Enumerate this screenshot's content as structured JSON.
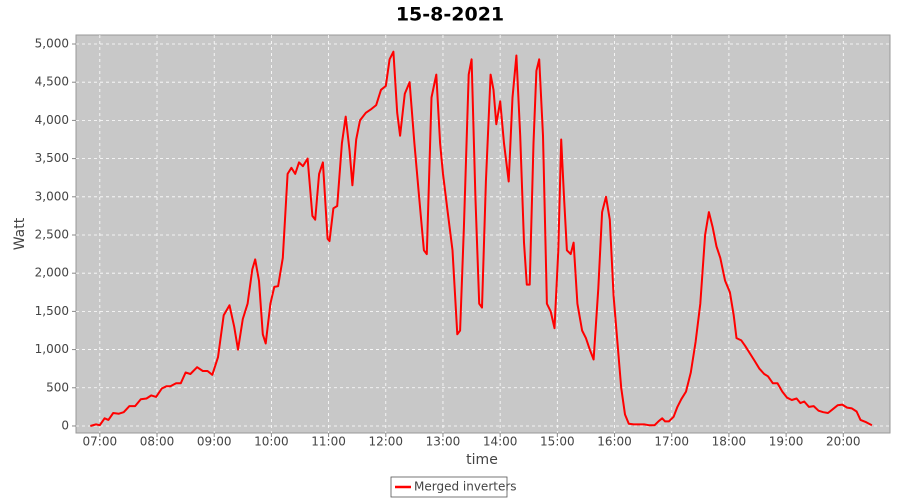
{
  "chart_data": {
    "type": "line",
    "title": "15-8-2021",
    "x_label": "time",
    "y_label": "Watt",
    "xlim": [
      "06:35",
      "20:49"
    ],
    "xticks": [
      "07:00",
      "08:00",
      "09:00",
      "10:00",
      "11:00",
      "12:00",
      "13:00",
      "14:00",
      "15:00",
      "16:00",
      "17:00",
      "18:00",
      "19:00",
      "20:00"
    ],
    "ylim": [
      -92,
      5118
    ],
    "yticks": [
      0,
      500,
      {
        "value": 1000,
        "label": "1,000"
      },
      {
        "value": 1500,
        "label": "1,500"
      },
      {
        "value": 2000,
        "label": "2,000"
      },
      {
        "value": 2500,
        "label": "2,500"
      },
      {
        "value": 3000,
        "label": "3,000"
      },
      {
        "value": 3500,
        "label": "3,500"
      },
      {
        "value": 4000,
        "label": "4,000"
      },
      {
        "value": 4500,
        "label": "4,500"
      },
      {
        "value": 5000,
        "label": "5,000"
      }
    ],
    "grid": true,
    "legend": "bottom",
    "x": [
      "06:50",
      "06:56",
      "07:00",
      "07:05",
      "07:09",
      "07:14",
      "07:20",
      "07:25",
      "07:31",
      "07:37",
      "07:43",
      "07:49",
      "07:54",
      "07:59",
      "08:05",
      "08:10",
      "08:14",
      "08:20",
      "08:25",
      "08:30",
      "08:35",
      "08:42",
      "08:48",
      "08:53",
      "08:58",
      "09:04",
      "09:10",
      "09:16",
      "09:21",
      "09:25",
      "09:30",
      "09:35",
      "09:40",
      "09:43",
      "09:47",
      "09:51",
      "09:54",
      "09:59",
      "10:03",
      "10:07",
      "10:12",
      "10:17",
      "10:21",
      "10:25",
      "10:29",
      "10:33",
      "10:38",
      "10:43",
      "10:46",
      "10:50",
      "10:54",
      "10:59",
      "11:01",
      "11:05",
      "11:09",
      "11:14",
      "11:18",
      "11:22",
      "11:25",
      "11:29",
      "11:33",
      "11:39",
      "11:45",
      "11:50",
      "11:55",
      "12:00",
      "12:04",
      "12:08",
      "12:12",
      "12:15",
      "12:20",
      "12:25",
      "12:30",
      "12:35",
      "12:40",
      "12:43",
      "12:48",
      "12:53",
      "12:57",
      "13:00",
      "13:05",
      "13:10",
      "13:15",
      "13:18",
      "13:22",
      "13:27",
      "13:30",
      "13:34",
      "13:38",
      "13:41",
      "13:45",
      "13:50",
      "13:53",
      "13:56",
      "14:00",
      "14:04",
      "14:09",
      "14:13",
      "14:17",
      "14:21",
      "14:25",
      "14:28",
      "14:31",
      "14:35",
      "14:38",
      "14:41",
      "14:45",
      "14:49",
      "14:53",
      "14:57",
      "15:01",
      "15:04",
      "15:07",
      "15:10",
      "15:14",
      "15:17",
      "15:21",
      "15:26",
      "15:30",
      "15:34",
      "15:38",
      "15:43",
      "15:47",
      "15:51",
      "15:55",
      "15:59",
      "16:03",
      "16:07",
      "16:11",
      "16:15",
      "16:20",
      "16:26",
      "16:31",
      "16:36",
      "16:42",
      "16:46",
      "16:50",
      "16:53",
      "16:57",
      "17:02",
      "17:06",
      "17:10",
      "17:15",
      "17:20",
      "17:25",
      "17:30",
      "17:35",
      "17:39",
      "17:43",
      "17:47",
      "17:51",
      "17:56",
      "18:01",
      "18:05",
      "18:08",
      "18:13",
      "18:17",
      "18:22",
      "18:27",
      "18:32",
      "18:37",
      "18:41",
      "18:46",
      "18:51",
      "18:56",
      "19:01",
      "19:06",
      "19:11",
      "19:15",
      "19:19",
      "19:24",
      "19:29",
      "19:34",
      "19:39",
      "19:44",
      "19:49",
      "19:54",
      "19:59",
      "20:04",
      "20:09",
      "20:14",
      "20:18",
      "20:24",
      "20:30"
    ],
    "series": [
      {
        "name": "Merged inverters",
        "color": "#ff0000",
        "values": [
          0,
          20,
          10,
          100,
          80,
          170,
          160,
          180,
          260,
          260,
          350,
          360,
          400,
          380,
          490,
          520,
          520,
          560,
          560,
          700,
          680,
          770,
          720,
          720,
          670,
          900,
          1450,
          1580,
          1300,
          1000,
          1400,
          1600,
          2050,
          2180,
          1900,
          1200,
          1080,
          1600,
          1820,
          1830,
          2200,
          3300,
          3380,
          3300,
          3450,
          3400,
          3500,
          2750,
          2700,
          3300,
          3450,
          2450,
          2420,
          2850,
          2880,
          3700,
          4050,
          3600,
          3150,
          3750,
          4000,
          4100,
          4150,
          4200,
          4400,
          4450,
          4800,
          4900,
          4100,
          3800,
          4350,
          4500,
          3700,
          3000,
          2300,
          2250,
          4300,
          4600,
          3700,
          3300,
          2800,
          2300,
          1200,
          1250,
          2600,
          4600,
          4800,
          3000,
          1600,
          1550,
          3200,
          4600,
          4400,
          3950,
          4250,
          3700,
          3200,
          4300,
          4850,
          3800,
          2400,
          1850,
          1850,
          3700,
          4650,
          4800,
          3800,
          1600,
          1500,
          1280,
          2300,
          3750,
          3000,
          2300,
          2250,
          2400,
          1600,
          1250,
          1150,
          1000,
          870,
          1800,
          2800,
          3000,
          2700,
          1700,
          1100,
          500,
          150,
          30,
          20,
          20,
          20,
          10,
          10,
          60,
          100,
          60,
          60,
          120,
          250,
          350,
          450,
          700,
          1100,
          1600,
          2500,
          2800,
          2600,
          2350,
          2200,
          1900,
          1750,
          1450,
          1150,
          1120,
          1050,
          950,
          850,
          750,
          680,
          650,
          560,
          560,
          450,
          370,
          340,
          360,
          300,
          320,
          250,
          260,
          200,
          180,
          170,
          220,
          270,
          280,
          240,
          230,
          190,
          80,
          50,
          10
        ]
      }
    ]
  }
}
